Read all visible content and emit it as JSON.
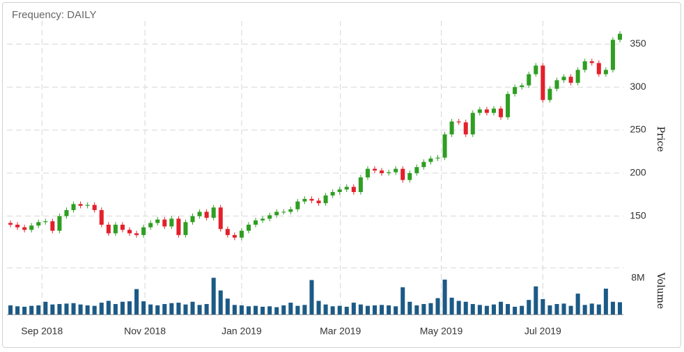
{
  "chart_data": {
    "type": "candlestick",
    "title": "Frequency: DAILY",
    "ylabel": "Price",
    "y2label": "Volume",
    "x": [
      0,
      1,
      2,
      3,
      4,
      5,
      6,
      7,
      8,
      9,
      10,
      11,
      12,
      13,
      14,
      15,
      16,
      17,
      18,
      19,
      20,
      21,
      22,
      23,
      24,
      25,
      26,
      27,
      28,
      29,
      30,
      31,
      32,
      33,
      34,
      35,
      36,
      37,
      38,
      39,
      40,
      41,
      42,
      43,
      44,
      45,
      46,
      47,
      48,
      49,
      50,
      51,
      52,
      53,
      54,
      55,
      56,
      57,
      58,
      59,
      60,
      61,
      62,
      63,
      64,
      65,
      66,
      67,
      68,
      69,
      70,
      71,
      72,
      73,
      74,
      75,
      76,
      77,
      78,
      79,
      80,
      81,
      82,
      83,
      84,
      85,
      86,
      87
    ],
    "open": [
      142,
      140,
      137,
      134,
      139,
      143,
      144,
      133,
      150,
      157,
      164,
      162,
      163,
      157,
      140,
      130,
      140,
      134,
      130,
      128,
      137,
      142,
      146,
      138,
      147,
      128,
      143,
      150,
      155,
      148,
      160,
      135,
      128,
      125,
      133,
      140,
      145,
      147,
      151,
      155,
      155,
      158,
      167,
      170,
      168,
      165,
      174,
      178,
      181,
      184,
      178,
      195,
      205,
      203,
      200,
      201,
      205,
      192,
      200,
      207,
      213,
      217,
      218,
      245,
      260,
      259,
      245,
      270,
      274,
      270,
      275,
      265,
      292,
      300,
      302,
      315,
      325,
      285,
      298,
      308,
      312,
      305,
      320,
      330,
      328,
      315,
      320,
      355
    ],
    "high": [
      145,
      143,
      140,
      142,
      146,
      147,
      147,
      153,
      160,
      167,
      167,
      166,
      166,
      160,
      143,
      143,
      143,
      137,
      133,
      140,
      145,
      149,
      149,
      150,
      150,
      146,
      153,
      158,
      158,
      163,
      163,
      138,
      131,
      136,
      143,
      148,
      150,
      154,
      158,
      158,
      161,
      170,
      173,
      173,
      171,
      177,
      181,
      184,
      187,
      187,
      198,
      208,
      208,
      206,
      204,
      208,
      208,
      203,
      210,
      216,
      220,
      221,
      248,
      263,
      263,
      262,
      273,
      277,
      277,
      278,
      278,
      295,
      303,
      305,
      318,
      328,
      328,
      301,
      311,
      315,
      315,
      323,
      333,
      333,
      331,
      323,
      358,
      365
    ],
    "low": [
      137,
      134,
      131,
      131,
      136,
      140,
      130,
      130,
      147,
      154,
      159,
      159,
      154,
      137,
      127,
      127,
      131,
      127,
      125,
      125,
      134,
      139,
      135,
      135,
      125,
      125,
      140,
      147,
      145,
      145,
      132,
      125,
      122,
      122,
      130,
      137,
      142,
      144,
      148,
      152,
      152,
      155,
      164,
      165,
      162,
      162,
      171,
      175,
      178,
      175,
      175,
      192,
      200,
      197,
      197,
      198,
      189,
      189,
      197,
      204,
      210,
      214,
      215,
      242,
      256,
      242,
      242,
      267,
      267,
      267,
      262,
      262,
      289,
      297,
      299,
      312,
      282,
      282,
      295,
      305,
      302,
      302,
      317,
      325,
      312,
      312,
      317,
      352
    ],
    "close": [
      140,
      137,
      134,
      139,
      143,
      144,
      133,
      150,
      157,
      164,
      162,
      163,
      157,
      140,
      130,
      140,
      134,
      130,
      128,
      137,
      142,
      146,
      138,
      147,
      128,
      143,
      150,
      155,
      148,
      160,
      135,
      128,
      125,
      133,
      140,
      145,
      147,
      151,
      155,
      155,
      158,
      167,
      170,
      168,
      165,
      174,
      178,
      181,
      184,
      178,
      195,
      205,
      203,
      200,
      201,
      205,
      192,
      200,
      207,
      213,
      217,
      218,
      245,
      260,
      259,
      245,
      270,
      274,
      270,
      275,
      265,
      292,
      300,
      302,
      315,
      325,
      285,
      298,
      308,
      312,
      305,
      320,
      330,
      328,
      315,
      320,
      355,
      362
    ],
    "volume": [
      2000000,
      1800000,
      1700000,
      1900000,
      2000000,
      2800000,
      2200000,
      2300000,
      2400000,
      2500000,
      2200000,
      2000000,
      1900000,
      2600000,
      3000000,
      2300000,
      2800000,
      2900000,
      5600000,
      2900000,
      2200000,
      2000000,
      2300000,
      2500000,
      2600000,
      2200000,
      2800000,
      2100000,
      2300000,
      8100000,
      5300000,
      3500000,
      2100000,
      2000000,
      1800000,
      1900000,
      1700000,
      1800000,
      1600000,
      2000000,
      2600000,
      1900000,
      2100000,
      7600000,
      3000000,
      2200000,
      1800000,
      1900000,
      1700000,
      2600000,
      2200000,
      1900000,
      2000000,
      2100000,
      2000000,
      1800000,
      6000000,
      2800000,
      2000000,
      2300000,
      2500000,
      3600000,
      7700000,
      3700000,
      3000000,
      2800000,
      2300000,
      2100000,
      1900000,
      2200000,
      2800000,
      2300000,
      1700000,
      1900000,
      3200000,
      6200000,
      3400000,
      2000000,
      2300000,
      2400000,
      1900000,
      4600000,
      2100000,
      2400000,
      2200000,
      5700000,
      2800000,
      2700000
    ],
    "xlim": [
      -0.5,
      87.5
    ],
    "xticks": [
      {
        "value": 4.5,
        "label": "Sep 2018"
      },
      {
        "value": 19.2,
        "label": "Nov 2018"
      },
      {
        "value": 33,
        "label": "Jan 2019"
      },
      {
        "value": 47.1,
        "label": "Mar 2019"
      },
      {
        "value": 61.5,
        "label": "May 2019"
      },
      {
        "value": 76,
        "label": "Jul 2019"
      }
    ],
    "ylim": [
      102,
      377
    ],
    "yticks": [
      150,
      200,
      250,
      300,
      350
    ],
    "y2lim": [
      0,
      10300000
    ],
    "y2ticks": [
      {
        "value": 8000000,
        "label": "8M"
      }
    ],
    "grid": true,
    "up_color": "#2f9e22",
    "down_color": "#e3202b",
    "volume_color": "#1c5a86"
  }
}
